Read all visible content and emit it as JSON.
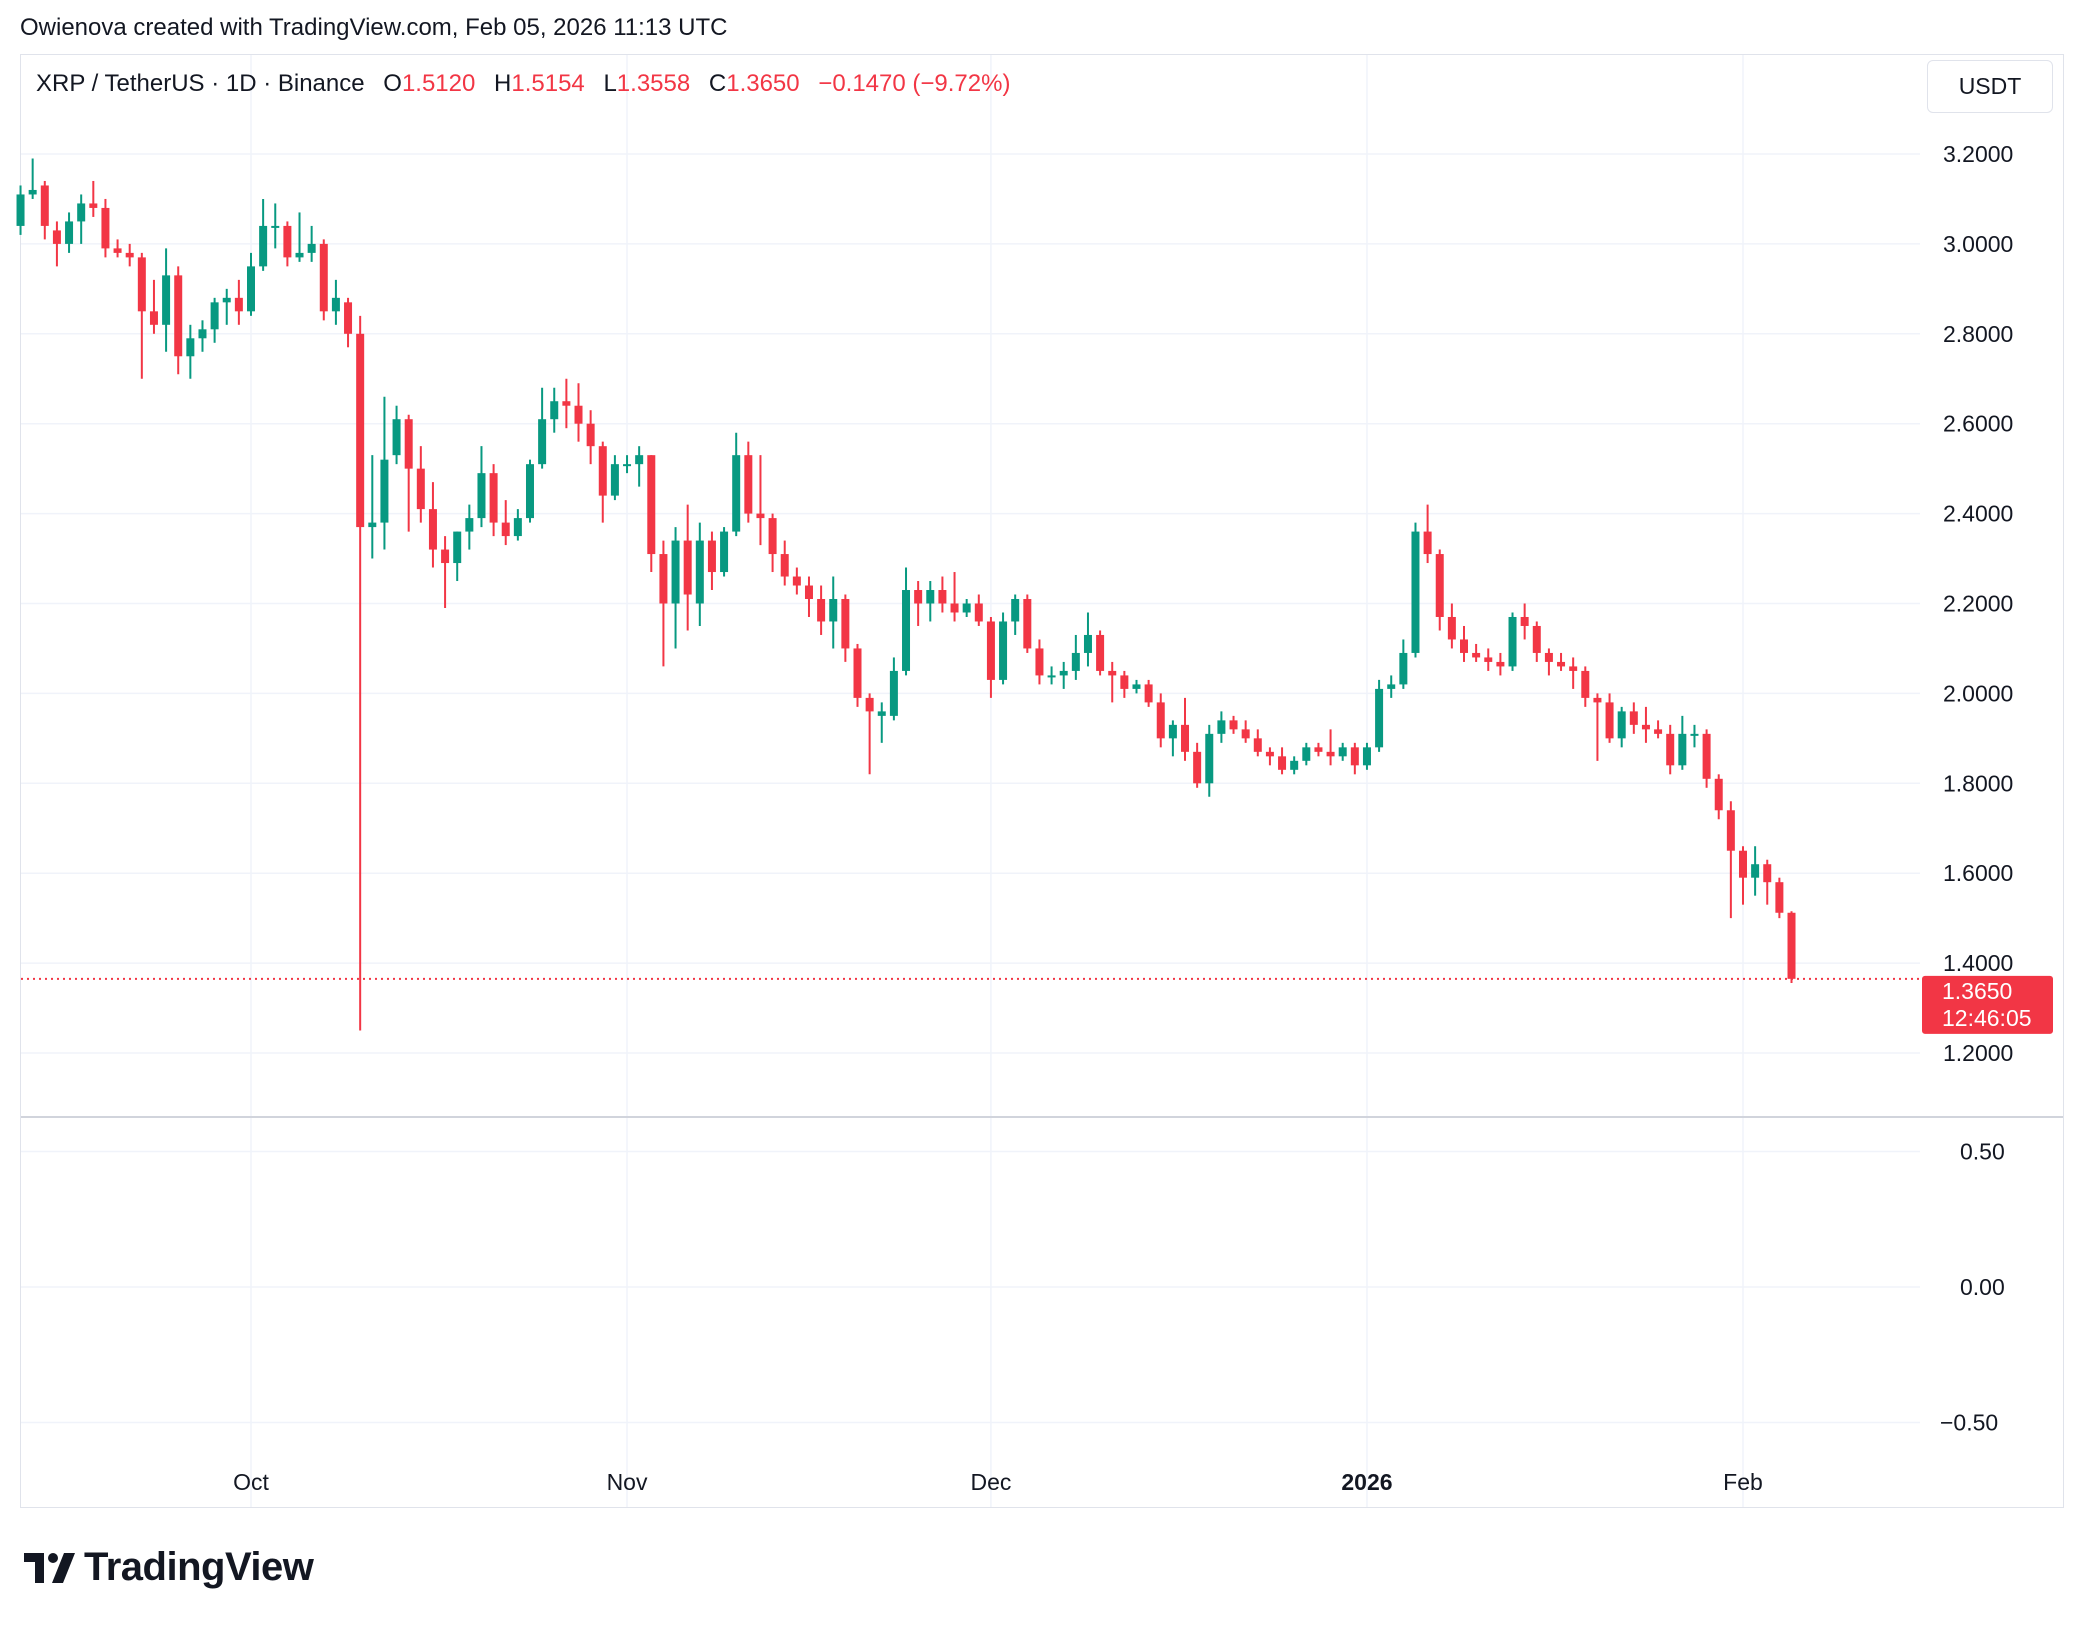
{
  "credit": "Owienova created with TradingView.com, Feb 05, 2026 11:13 UTC",
  "legend": {
    "symbol": "XRP / TetherUS · 1D · Binance",
    "open_label": "O",
    "open": "1.5120",
    "high_label": "H",
    "high": "1.5154",
    "low_label": "L",
    "low": "1.3558",
    "close_label": "C",
    "close": "1.3650",
    "change": "−0.1470 (−9.72%)"
  },
  "currency_button": "USDT",
  "price_label": {
    "price": "1.3650",
    "countdown": "12:46:05"
  },
  "logo_text": "TradingView",
  "colors": {
    "up": "#089981",
    "down": "#F23645",
    "grid": "#f0f3fa"
  },
  "chart_data": [
    {
      "type": "candlestick",
      "title": "XRP / TetherUS · 1D · Binance",
      "y_ticks": [
        "3.2000",
        "3.0000",
        "2.8000",
        "2.6000",
        "2.4000",
        "2.2000",
        "2.0000",
        "1.8000",
        "1.6000",
        "1.4000",
        "1.2000"
      ],
      "ylim": [
        1.06,
        3.31
      ],
      "x_ticks": [
        {
          "date": "2025-10-01",
          "label": "Oct",
          "bold": false
        },
        {
          "date": "2025-11-01",
          "label": "Nov",
          "bold": false
        },
        {
          "date": "2025-12-01",
          "label": "Dec",
          "bold": false
        },
        {
          "date": "2026-01-01",
          "label": "2026",
          "bold": true
        },
        {
          "date": "2026-02-01",
          "label": "Feb",
          "bold": false
        }
      ],
      "last_price": 1.365,
      "grid": true,
      "candles_columns": [
        "date",
        "open",
        "high",
        "low",
        "close"
      ],
      "candles": [
        [
          "2025-09-12",
          3.04,
          3.13,
          3.02,
          3.11
        ],
        [
          "2025-09-13",
          3.11,
          3.19,
          3.1,
          3.12
        ],
        [
          "2025-09-14",
          3.13,
          3.14,
          3.01,
          3.04
        ],
        [
          "2025-09-15",
          3.03,
          3.05,
          2.95,
          3.0
        ],
        [
          "2025-09-16",
          3.0,
          3.07,
          2.98,
          3.05
        ],
        [
          "2025-09-17",
          3.05,
          3.11,
          3.0,
          3.09
        ],
        [
          "2025-09-18",
          3.09,
          3.14,
          3.06,
          3.08
        ],
        [
          "2025-09-19",
          3.08,
          3.1,
          2.97,
          2.99
        ],
        [
          "2025-09-20",
          2.99,
          3.01,
          2.97,
          2.98
        ],
        [
          "2025-09-21",
          2.98,
          3.0,
          2.95,
          2.97
        ],
        [
          "2025-09-22",
          2.97,
          2.98,
          2.7,
          2.85
        ],
        [
          "2025-09-23",
          2.85,
          2.92,
          2.8,
          2.82
        ],
        [
          "2025-09-24",
          2.82,
          2.99,
          2.76,
          2.93
        ],
        [
          "2025-09-25",
          2.93,
          2.95,
          2.71,
          2.75
        ],
        [
          "2025-09-26",
          2.75,
          2.82,
          2.7,
          2.79
        ],
        [
          "2025-09-27",
          2.79,
          2.83,
          2.76,
          2.81
        ],
        [
          "2025-09-28",
          2.81,
          2.88,
          2.78,
          2.87
        ],
        [
          "2025-09-29",
          2.87,
          2.9,
          2.82,
          2.88
        ],
        [
          "2025-09-30",
          2.88,
          2.92,
          2.82,
          2.85
        ],
        [
          "2025-10-01",
          2.85,
          2.98,
          2.84,
          2.95
        ],
        [
          "2025-10-02",
          2.95,
          3.1,
          2.94,
          3.04
        ],
        [
          "2025-10-03",
          3.04,
          3.09,
          2.99,
          3.04
        ],
        [
          "2025-10-04",
          3.04,
          3.05,
          2.95,
          2.97
        ],
        [
          "2025-10-05",
          2.97,
          3.07,
          2.96,
          2.98
        ],
        [
          "2025-10-06",
          2.98,
          3.04,
          2.96,
          3.0
        ],
        [
          "2025-10-07",
          3.0,
          3.01,
          2.83,
          2.85
        ],
        [
          "2025-10-08",
          2.85,
          2.92,
          2.82,
          2.88
        ],
        [
          "2025-10-09",
          2.87,
          2.88,
          2.77,
          2.8
        ],
        [
          "2025-10-10",
          2.8,
          2.84,
          1.25,
          2.37
        ],
        [
          "2025-10-11",
          2.37,
          2.53,
          2.3,
          2.38
        ],
        [
          "2025-10-12",
          2.38,
          2.66,
          2.32,
          2.52
        ],
        [
          "2025-10-13",
          2.53,
          2.64,
          2.51,
          2.61
        ],
        [
          "2025-10-14",
          2.61,
          2.62,
          2.36,
          2.5
        ],
        [
          "2025-10-15",
          2.5,
          2.55,
          2.38,
          2.41
        ],
        [
          "2025-10-16",
          2.41,
          2.47,
          2.28,
          2.32
        ],
        [
          "2025-10-17",
          2.32,
          2.35,
          2.19,
          2.29
        ],
        [
          "2025-10-18",
          2.29,
          2.36,
          2.25,
          2.36
        ],
        [
          "2025-10-19",
          2.36,
          2.42,
          2.32,
          2.39
        ],
        [
          "2025-10-20",
          2.39,
          2.55,
          2.37,
          2.49
        ],
        [
          "2025-10-21",
          2.49,
          2.51,
          2.35,
          2.38
        ],
        [
          "2025-10-22",
          2.38,
          2.43,
          2.33,
          2.35
        ],
        [
          "2025-10-23",
          2.35,
          2.41,
          2.34,
          2.39
        ],
        [
          "2025-10-24",
          2.39,
          2.52,
          2.38,
          2.51
        ],
        [
          "2025-10-25",
          2.51,
          2.68,
          2.5,
          2.61
        ],
        [
          "2025-10-26",
          2.61,
          2.68,
          2.58,
          2.65
        ],
        [
          "2025-10-27",
          2.65,
          2.7,
          2.59,
          2.64
        ],
        [
          "2025-10-28",
          2.64,
          2.69,
          2.56,
          2.6
        ],
        [
          "2025-10-29",
          2.6,
          2.63,
          2.51,
          2.55
        ],
        [
          "2025-10-30",
          2.55,
          2.56,
          2.38,
          2.44
        ],
        [
          "2025-10-31",
          2.44,
          2.53,
          2.43,
          2.51
        ],
        [
          "2025-11-01",
          2.51,
          2.53,
          2.49,
          2.51
        ],
        [
          "2025-11-02",
          2.51,
          2.55,
          2.46,
          2.53
        ],
        [
          "2025-11-03",
          2.53,
          2.53,
          2.27,
          2.31
        ],
        [
          "2025-11-04",
          2.31,
          2.34,
          2.06,
          2.2
        ],
        [
          "2025-11-05",
          2.2,
          2.37,
          2.1,
          2.34
        ],
        [
          "2025-11-06",
          2.34,
          2.42,
          2.14,
          2.22
        ],
        [
          "2025-11-07",
          2.2,
          2.38,
          2.15,
          2.34
        ],
        [
          "2025-11-08",
          2.34,
          2.36,
          2.23,
          2.27
        ],
        [
          "2025-11-09",
          2.27,
          2.37,
          2.26,
          2.36
        ],
        [
          "2025-11-10",
          2.36,
          2.58,
          2.35,
          2.53
        ],
        [
          "2025-11-11",
          2.53,
          2.56,
          2.38,
          2.4
        ],
        [
          "2025-11-12",
          2.4,
          2.53,
          2.33,
          2.39
        ],
        [
          "2025-11-13",
          2.39,
          2.4,
          2.27,
          2.31
        ],
        [
          "2025-11-14",
          2.31,
          2.34,
          2.24,
          2.26
        ],
        [
          "2025-11-15",
          2.26,
          2.28,
          2.22,
          2.24
        ],
        [
          "2025-11-16",
          2.24,
          2.26,
          2.17,
          2.21
        ],
        [
          "2025-11-17",
          2.21,
          2.24,
          2.13,
          2.16
        ],
        [
          "2025-11-18",
          2.16,
          2.26,
          2.1,
          2.21
        ],
        [
          "2025-11-19",
          2.21,
          2.22,
          2.07,
          2.1
        ],
        [
          "2025-11-20",
          2.1,
          2.11,
          1.97,
          1.99
        ],
        [
          "2025-11-21",
          1.99,
          2.0,
          1.82,
          1.96
        ],
        [
          "2025-11-22",
          1.95,
          1.98,
          1.89,
          1.96
        ],
        [
          "2025-11-23",
          1.95,
          2.08,
          1.94,
          2.05
        ],
        [
          "2025-11-24",
          2.05,
          2.28,
          2.04,
          2.23
        ],
        [
          "2025-11-25",
          2.23,
          2.25,
          2.15,
          2.2
        ],
        [
          "2025-11-26",
          2.2,
          2.25,
          2.16,
          2.23
        ],
        [
          "2025-11-27",
          2.23,
          2.26,
          2.18,
          2.2
        ],
        [
          "2025-11-28",
          2.2,
          2.27,
          2.16,
          2.18
        ],
        [
          "2025-11-29",
          2.18,
          2.21,
          2.17,
          2.2
        ],
        [
          "2025-11-30",
          2.2,
          2.22,
          2.15,
          2.16
        ],
        [
          "2025-12-01",
          2.16,
          2.17,
          1.99,
          2.03
        ],
        [
          "2025-12-02",
          2.03,
          2.18,
          2.02,
          2.16
        ],
        [
          "2025-12-03",
          2.16,
          2.22,
          2.13,
          2.21
        ],
        [
          "2025-12-04",
          2.21,
          2.22,
          2.09,
          2.1
        ],
        [
          "2025-12-05",
          2.1,
          2.12,
          2.02,
          2.04
        ],
        [
          "2025-12-06",
          2.04,
          2.06,
          2.02,
          2.04
        ],
        [
          "2025-12-07",
          2.04,
          2.07,
          2.01,
          2.05
        ],
        [
          "2025-12-08",
          2.05,
          2.13,
          2.03,
          2.09
        ],
        [
          "2025-12-09",
          2.09,
          2.18,
          2.06,
          2.13
        ],
        [
          "2025-12-10",
          2.13,
          2.14,
          2.04,
          2.05
        ],
        [
          "2025-12-11",
          2.05,
          2.07,
          1.98,
          2.04
        ],
        [
          "2025-12-12",
          2.04,
          2.05,
          1.99,
          2.01
        ],
        [
          "2025-12-13",
          2.01,
          2.03,
          2.0,
          2.02
        ],
        [
          "2025-12-14",
          2.02,
          2.03,
          1.97,
          1.98
        ],
        [
          "2025-12-15",
          1.98,
          2.0,
          1.88,
          1.9
        ],
        [
          "2025-12-16",
          1.9,
          1.94,
          1.86,
          1.93
        ],
        [
          "2025-12-17",
          1.93,
          1.99,
          1.85,
          1.87
        ],
        [
          "2025-12-18",
          1.87,
          1.89,
          1.79,
          1.8
        ],
        [
          "2025-12-19",
          1.8,
          1.93,
          1.77,
          1.91
        ],
        [
          "2025-12-20",
          1.91,
          1.96,
          1.89,
          1.94
        ],
        [
          "2025-12-21",
          1.94,
          1.95,
          1.91,
          1.92
        ],
        [
          "2025-12-22",
          1.92,
          1.94,
          1.89,
          1.9
        ],
        [
          "2025-12-23",
          1.9,
          1.92,
          1.86,
          1.87
        ],
        [
          "2025-12-24",
          1.87,
          1.88,
          1.84,
          1.86
        ],
        [
          "2025-12-25",
          1.86,
          1.88,
          1.82,
          1.83
        ],
        [
          "2025-12-26",
          1.83,
          1.86,
          1.82,
          1.85
        ],
        [
          "2025-12-27",
          1.85,
          1.89,
          1.84,
          1.88
        ],
        [
          "2025-12-28",
          1.88,
          1.89,
          1.86,
          1.87
        ],
        [
          "2025-12-29",
          1.87,
          1.92,
          1.84,
          1.86
        ],
        [
          "2025-12-30",
          1.86,
          1.89,
          1.85,
          1.88
        ],
        [
          "2025-12-31",
          1.88,
          1.89,
          1.82,
          1.84
        ],
        [
          "2026-01-01",
          1.84,
          1.89,
          1.83,
          1.88
        ],
        [
          "2026-01-02",
          1.88,
          2.03,
          1.87,
          2.01
        ],
        [
          "2026-01-03",
          2.01,
          2.04,
          1.99,
          2.02
        ],
        [
          "2026-01-04",
          2.02,
          2.12,
          2.01,
          2.09
        ],
        [
          "2026-01-05",
          2.09,
          2.38,
          2.08,
          2.36
        ],
        [
          "2026-01-06",
          2.36,
          2.42,
          2.29,
          2.31
        ],
        [
          "2026-01-07",
          2.31,
          2.32,
          2.14,
          2.17
        ],
        [
          "2026-01-08",
          2.17,
          2.2,
          2.1,
          2.12
        ],
        [
          "2026-01-09",
          2.12,
          2.15,
          2.07,
          2.09
        ],
        [
          "2026-01-10",
          2.09,
          2.11,
          2.07,
          2.08
        ],
        [
          "2026-01-11",
          2.08,
          2.1,
          2.05,
          2.07
        ],
        [
          "2026-01-12",
          2.07,
          2.09,
          2.04,
          2.06
        ],
        [
          "2026-01-13",
          2.06,
          2.18,
          2.05,
          2.17
        ],
        [
          "2026-01-14",
          2.17,
          2.2,
          2.12,
          2.15
        ],
        [
          "2026-01-15",
          2.15,
          2.16,
          2.07,
          2.09
        ],
        [
          "2026-01-16",
          2.09,
          2.1,
          2.04,
          2.07
        ],
        [
          "2026-01-17",
          2.07,
          2.09,
          2.05,
          2.06
        ],
        [
          "2026-01-18",
          2.06,
          2.08,
          2.01,
          2.05
        ],
        [
          "2026-01-19",
          2.05,
          2.06,
          1.97,
          1.99
        ],
        [
          "2026-01-20",
          1.99,
          2.0,
          1.85,
          1.98
        ],
        [
          "2026-01-21",
          1.98,
          2.0,
          1.89,
          1.9
        ],
        [
          "2026-01-22",
          1.9,
          1.97,
          1.88,
          1.96
        ],
        [
          "2026-01-23",
          1.96,
          1.98,
          1.91,
          1.93
        ],
        [
          "2026-01-24",
          1.93,
          1.97,
          1.89,
          1.92
        ],
        [
          "2026-01-25",
          1.92,
          1.94,
          1.9,
          1.91
        ],
        [
          "2026-01-26",
          1.91,
          1.93,
          1.82,
          1.84
        ],
        [
          "2026-01-27",
          1.84,
          1.95,
          1.83,
          1.91
        ],
        [
          "2026-01-28",
          1.91,
          1.93,
          1.88,
          1.91
        ],
        [
          "2026-01-29",
          1.91,
          1.92,
          1.79,
          1.81
        ],
        [
          "2026-01-30",
          1.81,
          1.82,
          1.72,
          1.74
        ],
        [
          "2026-01-31",
          1.74,
          1.76,
          1.5,
          1.65
        ],
        [
          "2026-02-01",
          1.65,
          1.66,
          1.53,
          1.59
        ],
        [
          "2026-02-02",
          1.59,
          1.66,
          1.55,
          1.62
        ],
        [
          "2026-02-03",
          1.62,
          1.63,
          1.53,
          1.58
        ],
        [
          "2026-02-04",
          1.58,
          1.59,
          1.5,
          1.512
        ],
        [
          "2026-02-05",
          1.512,
          1.5154,
          1.3558,
          1.365
        ]
      ]
    },
    {
      "type": "line",
      "y_ticks": [
        "0.50",
        "0.00",
        "−0.50"
      ],
      "series": []
    }
  ]
}
